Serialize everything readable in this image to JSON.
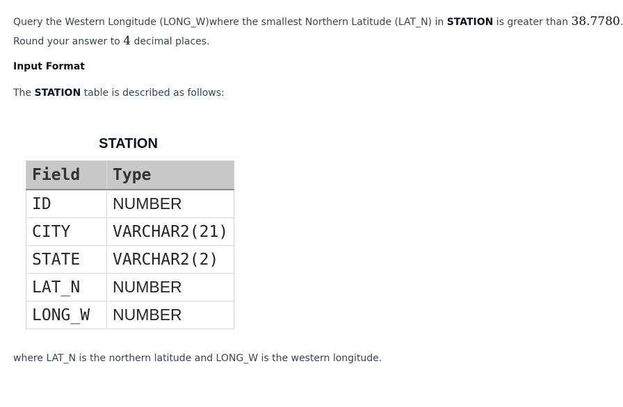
{
  "problem": {
    "line1_text": "Query the Western Longitude (LONG_W)where the smallest Northern Latitude (LAT_N) in ",
    "line1_bold": "STATION",
    "line1_after": " is greater than ",
    "line1_value": "38.7780",
    "line1_end": ".",
    "line2_before": "Round your answer to ",
    "line2_value": "4",
    "line2_after": " decimal places."
  },
  "input_format": {
    "heading": "Input Format",
    "desc_before": "The ",
    "desc_bold": "STATION",
    "desc_after": " table is described as follows:"
  },
  "table": {
    "caption": "STATION",
    "headers": [
      "Field",
      "Type"
    ],
    "rows": [
      {
        "field": "ID",
        "type": "NUMBER"
      },
      {
        "field": "CITY",
        "type": "VARCHAR2(21)"
      },
      {
        "field": "STATE",
        "type": "VARCHAR2(2)"
      },
      {
        "field": "LAT_N",
        "type": "NUMBER"
      },
      {
        "field": "LONG_W",
        "type": "NUMBER"
      }
    ]
  },
  "footer_note": "where LAT_N is the northern latitude and LONG_W is the western longitude."
}
